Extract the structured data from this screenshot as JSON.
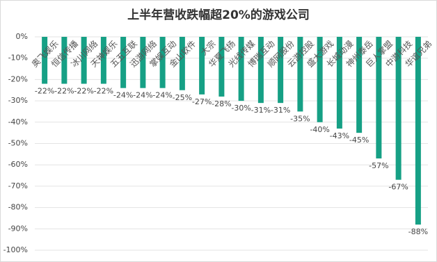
{
  "chart_data": {
    "type": "bar",
    "title": "上半年营收跌幅超20%的游戏公司",
    "categories": [
      "奥飞娱乐",
      "恒信传播",
      "冰川网络",
      "天神娱乐",
      "五五互联",
      "迅游网络",
      "掌娱互动",
      "金山软件",
      "大宗",
      "华夏飞扬",
      "光线传媒",
      "博瑞互动",
      "顺网股份",
      "云游控股",
      "盛大游戏",
      "长城动漫",
      "神州泰岳",
      "巨人掌盟",
      "中游科技",
      "华谊兄弟"
    ],
    "values": [
      -22,
      -22,
      -22,
      -22,
      -24,
      -24,
      -24,
      -25,
      -27,
      -28,
      -30,
      -31,
      -31,
      -35,
      -40,
      -43,
      -45,
      -57,
      -67,
      -88
    ],
    "value_labels": [
      "-22%",
      "-22%",
      "-22%",
      "-22%",
      "-24%",
      "-24%",
      "-24%",
      "-25%",
      "-27%",
      "-28%",
      "-30%",
      "-31%",
      "-31%",
      "-35%",
      "-40%",
      "-43%",
      "-45%",
      "-57%",
      "-67%",
      "-88%"
    ],
    "color": "#16a085",
    "ylim": [
      -100,
      0
    ],
    "yticks": [
      {
        "value": 0,
        "label": "0%"
      },
      {
        "value": -10,
        "label": "-10%"
      },
      {
        "value": -20,
        "label": "-20%"
      },
      {
        "value": -30,
        "label": "-30%"
      },
      {
        "value": -40,
        "label": "-40%"
      },
      {
        "value": -50,
        "label": "-50%"
      },
      {
        "value": -60,
        "label": "-60%"
      },
      {
        "value": -70,
        "label": "-70%"
      },
      {
        "value": -80,
        "label": "-80%"
      },
      {
        "value": -90,
        "label": "-90%"
      },
      {
        "value": -100,
        "label": "-100%"
      }
    ],
    "grid": true
  }
}
